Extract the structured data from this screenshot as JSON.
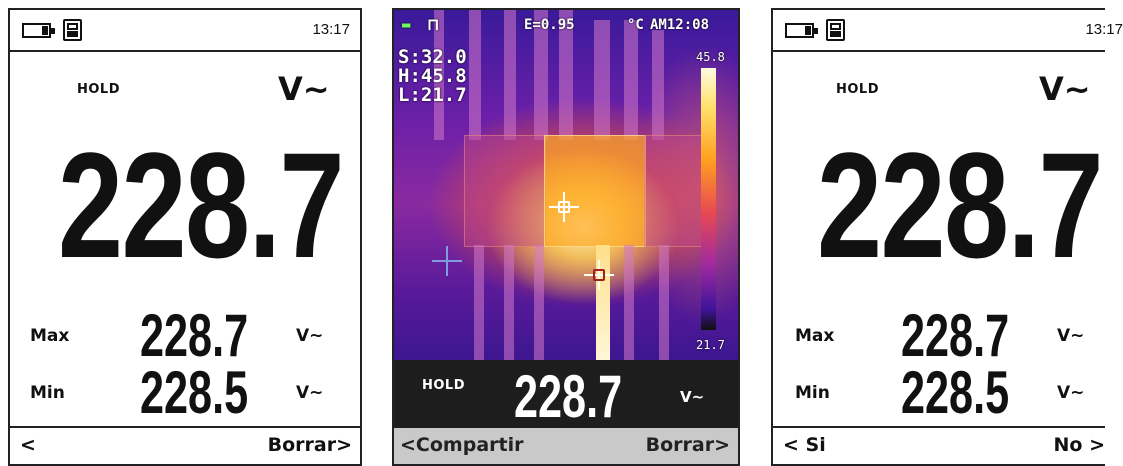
{
  "screens": {
    "left": {
      "time": "13:17",
      "hold": "HOLD",
      "unit": "V~",
      "reading": "228.7",
      "max_label": "Max",
      "max_value": "228.7",
      "max_unit": "V~",
      "min_label": "Min",
      "min_value": "228.5",
      "min_unit": "V~",
      "softkey_left": "<",
      "softkey_right": "Borrar"
    },
    "thermal": {
      "emissivity": "E=0.95",
      "temp_unit": "°C",
      "time": "AM12:08",
      "stats": {
        "s": "S:32.0",
        "h": "H:45.8",
        "l": "L:21.7"
      },
      "scale_max": "45.8",
      "scale_min": "21.7",
      "hold": "HOLD",
      "reading": "228.7",
      "unit": "V~",
      "softkey_left": "Compartir",
      "softkey_right": "Borrar"
    },
    "right": {
      "time": "13:17",
      "hold": "HOLD",
      "unit": "V~",
      "reading": "228.7",
      "max_label": "Max",
      "max_value": "228.7",
      "max_unit": "V~",
      "min_label": "Min",
      "min_value": "228.5",
      "min_unit": "V~",
      "softkey_left": "Si",
      "softkey_right": "No"
    }
  },
  "icons": [
    "battery-icon",
    "memory-card-icon",
    "chevron-left-icon",
    "chevron-right-icon",
    "crosshair-icon"
  ],
  "colors": {
    "screen_bg": "#ffffff",
    "thermal_bar": "#1d1d1d",
    "softkey_bar": "#c9c9c9",
    "text": "#111111"
  }
}
